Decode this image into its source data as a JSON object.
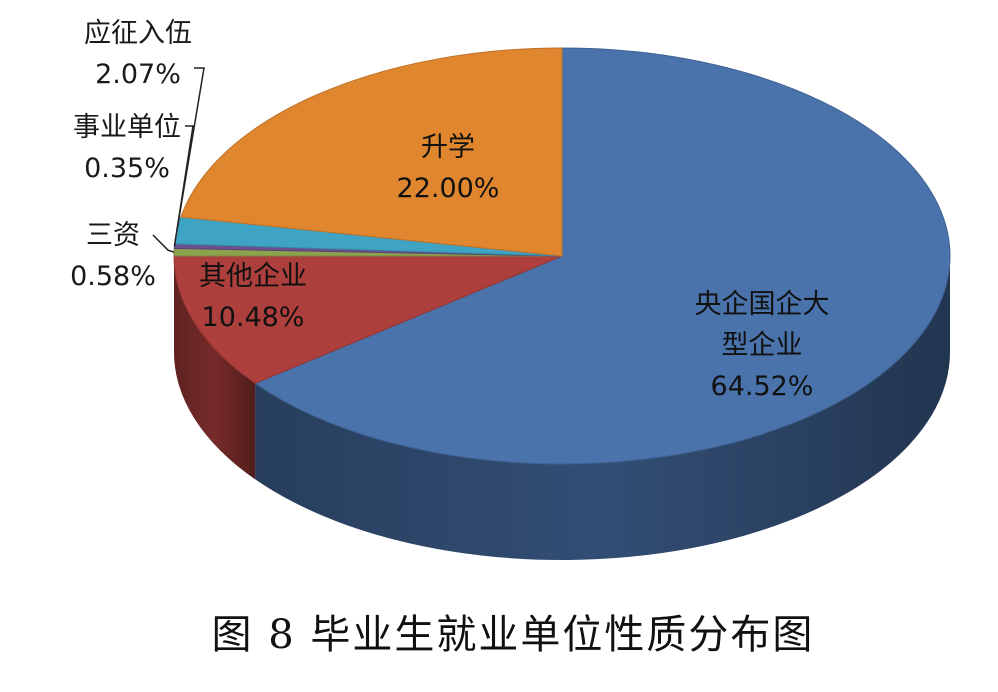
{
  "chart_data": {
    "type": "pie",
    "title": "图 8  毕业生就业单位性质分布图",
    "three_d": true,
    "slices": [
      {
        "label_lines": [
          "央企国企大",
          "型企业"
        ],
        "percent_text": "64.52%",
        "value": 64.52,
        "color": "#4a72ab"
      },
      {
        "label_lines": [
          "其他企业"
        ],
        "percent_text": "10.48%",
        "value": 10.48,
        "color": "#ad3f3c"
      },
      {
        "label_lines": [
          "三资"
        ],
        "percent_text": "0.58%",
        "value": 0.58,
        "color": "#8da24c"
      },
      {
        "label_lines": [
          "事业单位"
        ],
        "percent_text": "0.35%",
        "value": 0.35,
        "color": "#6b4f8e"
      },
      {
        "label_lines": [
          "应征入伍"
        ],
        "percent_text": "2.07%",
        "value": 2.07,
        "color": "#3fa3c3"
      },
      {
        "label_lines": [
          "升学"
        ],
        "percent_text": "22.00%",
        "value": 22.0,
        "color": "#e0862f"
      }
    ]
  }
}
